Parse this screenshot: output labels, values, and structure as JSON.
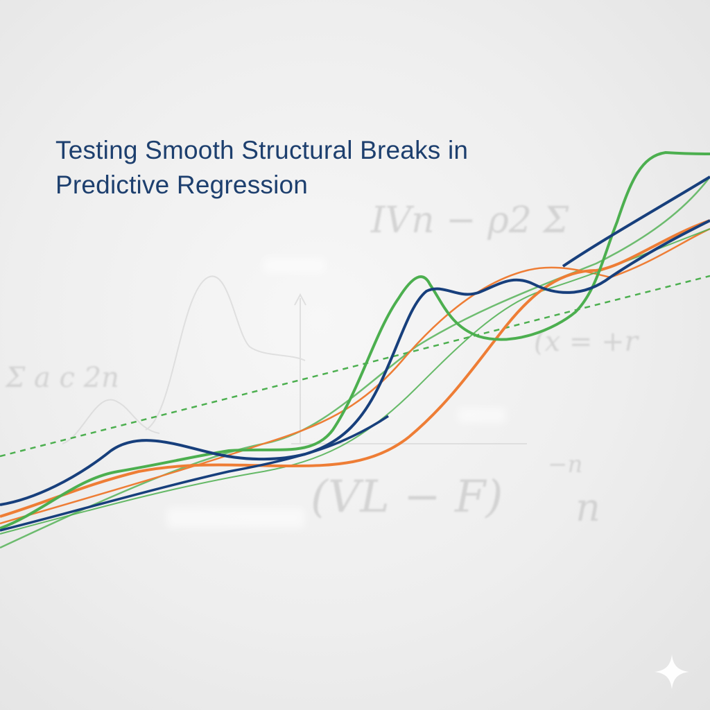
{
  "title": {
    "line1": "Testing Smooth Structural Breaks in",
    "line2": "Predictive Regression"
  },
  "background_formulas": [
    "IVn − ρ2 Σ",
    "Σ a  c  2n",
    "(x = +r",
    "(VL − F)",
    "−n",
    "n"
  ],
  "colors": {
    "title": "#1d3f6e",
    "navy": "#173f7c",
    "green": "#4caf4f",
    "orange": "#ee7d35",
    "background": "#eeeeee"
  },
  "icons": [
    "sparkle-icon"
  ]
}
